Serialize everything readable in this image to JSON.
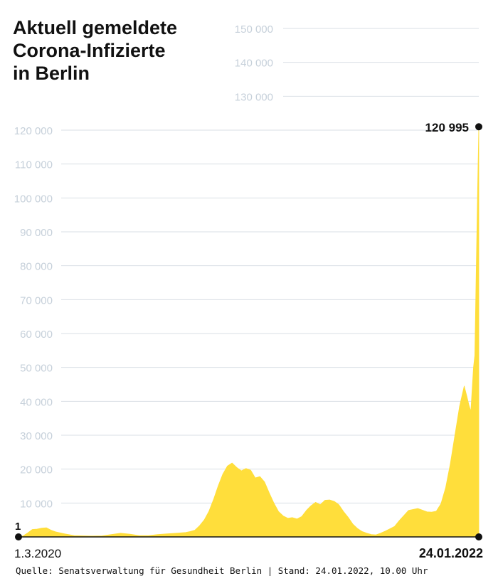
{
  "chart_data": {
    "type": "area",
    "title": [
      "Aktuell gemeldete",
      "Corona-Infizierte",
      "in Berlin"
    ],
    "source": "Quelle: Senatsverwaltung für Gesundheit Berlin | Stand: 24.01.2022, 10.00 Uhr",
    "x_start_label": "1.3.2020",
    "x_end_label": "24.01.2022",
    "start_value": 1,
    "start_value_label": "1",
    "end_value": 120995,
    "end_value_label": "120 995",
    "ylim": [
      0,
      150000
    ],
    "y_ticks": [
      {
        "value": 10000,
        "label": "10 000"
      },
      {
        "value": 20000,
        "label": "20 000"
      },
      {
        "value": 30000,
        "label": "30 000"
      },
      {
        "value": 40000,
        "label": "40 000"
      },
      {
        "value": 50000,
        "label": "50 000"
      },
      {
        "value": 60000,
        "label": "60 000"
      },
      {
        "value": 70000,
        "label": "70 000"
      },
      {
        "value": 80000,
        "label": "80 000"
      },
      {
        "value": 90000,
        "label": "90 000"
      },
      {
        "value": 100000,
        "label": "100 000"
      },
      {
        "value": 110000,
        "label": "110 000"
      },
      {
        "value": 120000,
        "label": "120 000"
      },
      {
        "value": 130000,
        "label": "130 000"
      },
      {
        "value": 140000,
        "label": "140 000"
      },
      {
        "value": 150000,
        "label": "150 000"
      }
    ],
    "grid": true,
    "fill_color": "#ffde3b",
    "line_color": "#111111",
    "grid_color": "#d9dfe5",
    "x": [
      "2020-03-01",
      "2020-03-08",
      "2020-03-15",
      "2020-03-22",
      "2020-03-29",
      "2020-04-05",
      "2020-04-12",
      "2020-04-19",
      "2020-04-26",
      "2020-05-10",
      "2020-05-24",
      "2020-06-07",
      "2020-06-21",
      "2020-07-05",
      "2020-07-19",
      "2020-08-02",
      "2020-08-16",
      "2020-08-30",
      "2020-09-13",
      "2020-09-27",
      "2020-10-11",
      "2020-10-25",
      "2020-11-01",
      "2020-11-08",
      "2020-11-15",
      "2020-11-22",
      "2020-11-29",
      "2020-12-06",
      "2020-12-13",
      "2020-12-20",
      "2020-12-27",
      "2021-01-03",
      "2021-01-10",
      "2021-01-17",
      "2021-01-24",
      "2021-01-31",
      "2021-02-07",
      "2021-02-14",
      "2021-02-21",
      "2021-02-28",
      "2021-03-07",
      "2021-03-14",
      "2021-03-21",
      "2021-03-28",
      "2021-04-04",
      "2021-04-11",
      "2021-04-18",
      "2021-04-25",
      "2021-05-02",
      "2021-05-09",
      "2021-05-16",
      "2021-05-23",
      "2021-05-30",
      "2021-06-06",
      "2021-06-13",
      "2021-06-20",
      "2021-06-27",
      "2021-07-04",
      "2021-07-11",
      "2021-07-18",
      "2021-07-25",
      "2021-08-01",
      "2021-08-08",
      "2021-08-15",
      "2021-08-22",
      "2021-08-29",
      "2021-09-05",
      "2021-09-12",
      "2021-09-19",
      "2021-09-26",
      "2021-10-03",
      "2021-10-10",
      "2021-10-17",
      "2021-10-24",
      "2021-10-31",
      "2021-11-07",
      "2021-11-14",
      "2021-11-21",
      "2021-11-28",
      "2021-12-05",
      "2021-12-12",
      "2021-12-19",
      "2021-12-26",
      "2022-01-02",
      "2022-01-06",
      "2022-01-09",
      "2022-01-12",
      "2022-01-16",
      "2022-01-18",
      "2022-01-20",
      "2022-01-22",
      "2022-01-24"
    ],
    "values": [
      1,
      300,
      1200,
      2200,
      2300,
      2600,
      2700,
      2000,
      1500,
      900,
      400,
      300,
      250,
      300,
      700,
      1100,
      800,
      400,
      400,
      700,
      900,
      1100,
      1200,
      1300,
      1600,
      2000,
      3300,
      5000,
      7500,
      11000,
      15000,
      18500,
      20900,
      21800,
      20500,
      19500,
      20200,
      19700,
      17400,
      17800,
      16200,
      13000,
      10000,
      7500,
      6200,
      5500,
      5700,
      5300,
      6000,
      7800,
      9200,
      10200,
      9500,
      10800,
      10900,
      10500,
      9500,
      7500,
      5800,
      3800,
      2500,
      1600,
      1100,
      700,
      600,
      1100,
      1700,
      2400,
      3100,
      4800,
      6300,
      7800,
      8100,
      8400,
      7900,
      7400,
      7300,
      7600,
      9800,
      14500,
      21500,
      30000,
      38500,
      44500,
      41500,
      39000,
      37000,
      50000,
      53500,
      77000,
      100000,
      120995
    ]
  }
}
